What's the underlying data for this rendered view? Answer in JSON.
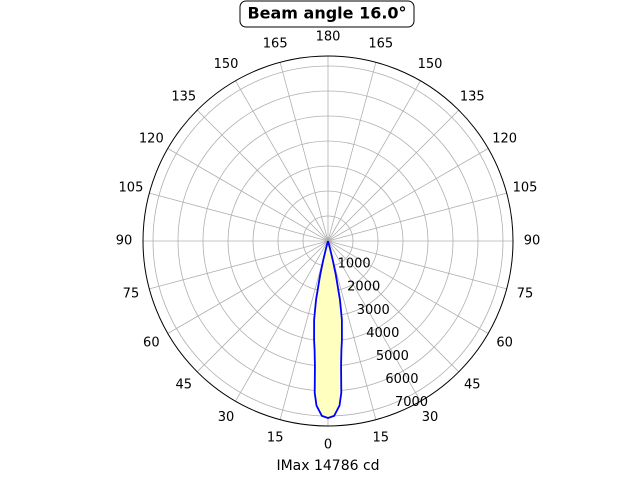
{
  "chart_data": {
    "type": "polar",
    "title": "Beam angle 16.0°",
    "xlabel": "IMax 14786 cd",
    "rlim": [
      0,
      7400
    ],
    "rticks": [
      1000,
      2000,
      3000,
      4000,
      5000,
      6000,
      7000
    ],
    "thetaticks": [
      0,
      15,
      30,
      45,
      60,
      75,
      90,
      105,
      120,
      135,
      150,
      165,
      180,
      {
        "value": 195,
        "label": "165"
      },
      {
        "value": 210,
        "label": "150"
      },
      {
        "value": 225,
        "label": "135"
      },
      {
        "value": 240,
        "label": "120"
      },
      {
        "value": 255,
        "label": "105"
      },
      {
        "value": 270,
        "label": "90"
      },
      {
        "value": 285,
        "label": "75"
      },
      {
        "value": 300,
        "label": "60"
      },
      {
        "value": 315,
        "label": "45"
      },
      {
        "value": 330,
        "label": "30"
      },
      {
        "value": 345,
        "label": "15"
      }
    ],
    "grid": true,
    "series": [
      {
        "color": "#0000ff",
        "fill": "#ffffc0",
        "theta": [
          -16,
          -15,
          -14,
          -13,
          -11.5,
          -10,
          -8,
          -7,
          -6,
          -5,
          -4,
          -2,
          0,
          2,
          4,
          5,
          6,
          7,
          8,
          10,
          11.5,
          13,
          14,
          15,
          16
        ],
        "values": [
          0,
          300,
          800,
          1400,
          2400,
          3200,
          4000,
          4400,
          5000,
          6100,
          6600,
          7000,
          7080,
          7000,
          6600,
          6100,
          5000,
          4400,
          4000,
          3200,
          2400,
          1400,
          800,
          300,
          0
        ]
      }
    ]
  }
}
